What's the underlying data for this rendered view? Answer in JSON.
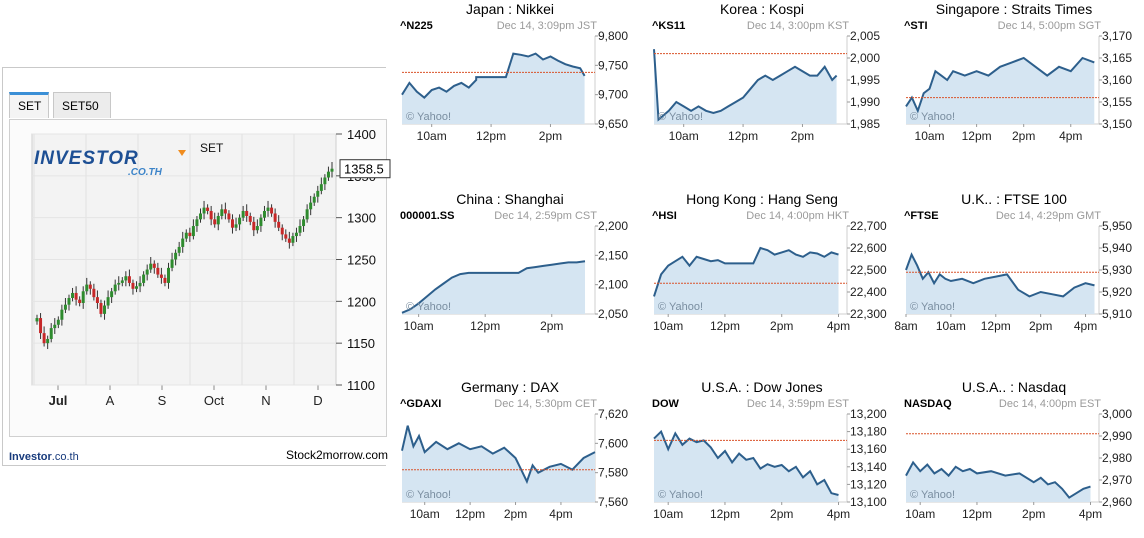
{
  "set_panel": {
    "tabs": [
      {
        "label": "SET"
      },
      {
        "label": "SET50"
      }
    ],
    "logo_text": "INVESTOR",
    "logo_sub": ".CO.TH",
    "index_label": "SET",
    "current_value_label": "1358.5",
    "footer_brand": "Investor",
    "footer_domain": ".co.th",
    "footer_right": "Stock2morrow.com"
  },
  "chart_data": [
    {
      "id": "set",
      "type": "candlestick",
      "title": "SET",
      "ylim": [
        1100,
        1400
      ],
      "yticks": [
        1100,
        1150,
        1200,
        1250,
        1300,
        1350,
        1400
      ],
      "xtick_labels": [
        "Jul",
        "A",
        "S",
        "Oct",
        "N",
        "D"
      ],
      "current_value": 1358.5,
      "up_color": "#2e8b2e",
      "down_color": "#c62828",
      "closes": [
        1180,
        1162,
        1150,
        1155,
        1168,
        1172,
        1178,
        1190,
        1196,
        1204,
        1210,
        1202,
        1198,
        1212,
        1220,
        1215,
        1205,
        1198,
        1185,
        1195,
        1205,
        1212,
        1220,
        1222,
        1225,
        1230,
        1222,
        1215,
        1218,
        1222,
        1232,
        1238,
        1245,
        1240,
        1232,
        1228,
        1222,
        1240,
        1250,
        1258,
        1265,
        1275,
        1282,
        1278,
        1290,
        1298,
        1305,
        1312,
        1308,
        1298,
        1292,
        1302,
        1310,
        1305,
        1298,
        1288,
        1292,
        1300,
        1308,
        1302,
        1295,
        1285,
        1290,
        1300,
        1308,
        1312,
        1305,
        1295,
        1288,
        1280,
        1275,
        1270,
        1278,
        1282,
        1290,
        1298,
        1310,
        1318,
        1325,
        1332,
        1340,
        1348,
        1355,
        1358.5
      ]
    },
    {
      "id": "nikkei",
      "type": "area",
      "title": "Japan : Nikkei",
      "symbol": "^N225",
      "timestamp": "Dec 14, 3:09pm JST",
      "ylim": [
        9650,
        9800
      ],
      "yticks": [
        9650,
        9700,
        9750,
        9800
      ],
      "ytick_labels": [
        "9,650",
        "9,700",
        "9,750",
        "9,800"
      ],
      "xlim": [
        9,
        15.5
      ],
      "xticks": [
        10,
        12,
        14
      ],
      "xtick_labels": [
        "10am",
        "12pm",
        "2pm"
      ],
      "reference": 9738,
      "x": [
        9,
        9.25,
        9.5,
        9.75,
        10,
        10.25,
        10.5,
        10.75,
        11,
        11.25,
        11.5,
        11.5,
        12.5,
        12.75,
        13,
        13.25,
        13.5,
        13.75,
        14,
        14.25,
        14.5,
        14.75,
        15,
        15.15
      ],
      "y": [
        9700,
        9720,
        9705,
        9695,
        9708,
        9712,
        9705,
        9715,
        9720,
        9712,
        9725,
        9730,
        9730,
        9770,
        9768,
        9765,
        9770,
        9760,
        9765,
        9758,
        9752,
        9748,
        9745,
        9732
      ]
    },
    {
      "id": "kospi",
      "type": "area",
      "title": "Korea : Kospi",
      "symbol": "^KS11",
      "timestamp": "Dec 14, 3:00pm KST",
      "ylim": [
        1985,
        2005
      ],
      "yticks": [
        1985,
        1990,
        1995,
        2000,
        2005
      ],
      "ytick_labels": [
        "1,985",
        "1,990",
        "1,995",
        "2,000",
        "2,005"
      ],
      "xlim": [
        9,
        15.5
      ],
      "xticks": [
        10,
        12,
        14
      ],
      "xtick_labels": [
        "10am",
        "12pm",
        "2pm"
      ],
      "reference": 2001,
      "x": [
        9,
        9.15,
        9.5,
        9.75,
        10,
        10.25,
        10.5,
        10.75,
        11,
        11.25,
        11.5,
        11.75,
        12,
        12.25,
        12.5,
        12.75,
        13,
        13.25,
        13.5,
        13.75,
        14,
        14.25,
        14.5,
        14.75,
        15,
        15.15
      ],
      "y": [
        2002,
        1986,
        1988,
        1990,
        1989,
        1988,
        1989,
        1988,
        1987.5,
        1988,
        1989,
        1990,
        1991,
        1993,
        1995,
        1996,
        1995,
        1996,
        1997,
        1998,
        1997,
        1996,
        1996,
        1998,
        1995,
        1996
      ]
    },
    {
      "id": "sti",
      "type": "area",
      "title": "Singapore : Straits Times",
      "symbol": "^STI",
      "timestamp": "Dec 14, 5:00pm SGT",
      "ylim": [
        3150,
        3170
      ],
      "yticks": [
        3150,
        3155,
        3160,
        3165,
        3170
      ],
      "ytick_labels": [
        "3,150",
        "3,155",
        "3,160",
        "3,165",
        "3,170"
      ],
      "xlim": [
        9,
        17.2
      ],
      "xticks": [
        10,
        12,
        14,
        16
      ],
      "xtick_labels": [
        "10am",
        "12pm",
        "2pm",
        "4pm"
      ],
      "reference": 3156,
      "x": [
        9,
        9.25,
        9.5,
        9.75,
        10,
        10.25,
        10.5,
        10.75,
        11,
        11.5,
        12,
        12.5,
        13,
        13.5,
        14,
        14.5,
        15,
        15.5,
        16,
        16.5,
        17
      ],
      "y": [
        3154,
        3156,
        3153,
        3157,
        3158,
        3162,
        3161,
        3160,
        3162,
        3161,
        3162,
        3161,
        3163,
        3164,
        3165,
        3163,
        3161,
        3163,
        3162,
        3165,
        3164
      ]
    },
    {
      "id": "shanghai",
      "type": "area",
      "title": "China : Shanghai",
      "symbol": "000001.SS",
      "timestamp": "Dec 14, 2:59pm CST",
      "ylim": [
        2050,
        2200
      ],
      "yticks": [
        2050,
        2100,
        2150,
        2200
      ],
      "ytick_labels": [
        "2,050",
        "2,100",
        "2,150",
        "2,200"
      ],
      "xlim": [
        9.5,
        15.3
      ],
      "xticks": [
        10,
        12,
        14
      ],
      "xtick_labels": [
        "10am",
        "12pm",
        "2pm"
      ],
      "reference": null,
      "x": [
        9.5,
        9.75,
        10,
        10.25,
        10.5,
        10.75,
        11,
        11.25,
        11.5,
        13,
        13.25,
        13.5,
        13.75,
        14,
        14.25,
        14.5,
        14.75,
        15
      ],
      "y": [
        2052,
        2058,
        2068,
        2080,
        2092,
        2102,
        2112,
        2118,
        2120,
        2120,
        2128,
        2130,
        2132,
        2134,
        2136,
        2138,
        2138,
        2140
      ]
    },
    {
      "id": "hangseng",
      "type": "area",
      "title": "Hong Kong : Hang Seng",
      "symbol": "^HSI",
      "timestamp": "Dec 14, 4:00pm HKT",
      "ylim": [
        22300,
        22700
      ],
      "yticks": [
        22300,
        22400,
        22500,
        22600,
        22700
      ],
      "ytick_labels": [
        "22,300",
        "22,400",
        "22,500",
        "22,600",
        "22,700"
      ],
      "xlim": [
        9.5,
        16.3
      ],
      "xticks": [
        10,
        12,
        14,
        16
      ],
      "xtick_labels": [
        "10am",
        "12pm",
        "2pm",
        "4pm"
      ],
      "reference": 22440,
      "x": [
        9.5,
        9.75,
        10,
        10.25,
        10.5,
        10.75,
        11,
        11.25,
        11.5,
        11.75,
        12,
        13,
        13.25,
        13.5,
        13.75,
        14,
        14.25,
        14.5,
        14.75,
        15,
        15.25,
        15.5,
        15.75,
        16
      ],
      "y": [
        22380,
        22480,
        22520,
        22540,
        22560,
        22520,
        22560,
        22550,
        22540,
        22545,
        22530,
        22530,
        22600,
        22590,
        22570,
        22580,
        22590,
        22570,
        22560,
        22580,
        22575,
        22560,
        22580,
        22570
      ]
    },
    {
      "id": "ftse",
      "type": "area",
      "title": "U.K.. : FTSE 100",
      "symbol": "^FTSE",
      "timestamp": "Dec 14, 4:29pm GMT",
      "ylim": [
        5910,
        5950
      ],
      "yticks": [
        5910,
        5920,
        5930,
        5940,
        5950
      ],
      "ytick_labels": [
        "5,910",
        "5,920",
        "5,930",
        "5,940",
        "5,950"
      ],
      "xlim": [
        8,
        16.6
      ],
      "xticks": [
        8,
        10,
        12,
        14,
        16
      ],
      "xtick_labels": [
        "8am",
        "10am",
        "12pm",
        "2pm",
        "4pm"
      ],
      "reference": 5929,
      "x": [
        8,
        8.25,
        8.5,
        8.75,
        9,
        9.25,
        9.5,
        9.75,
        10,
        10.5,
        11,
        11.5,
        12,
        12.5,
        13,
        13.5,
        14,
        14.5,
        15,
        15.5,
        16,
        16.4
      ],
      "y": [
        5930,
        5937,
        5932,
        5926,
        5929,
        5924,
        5928,
        5926,
        5925,
        5926,
        5924,
        5926,
        5927,
        5928,
        5921,
        5918,
        5920,
        5919,
        5918,
        5922,
        5924,
        5923
      ]
    },
    {
      "id": "dax",
      "type": "area",
      "title": "Germany : DAX",
      "symbol": "^GDAXI",
      "timestamp": "Dec 14, 5:30pm CET",
      "ylim": [
        7560,
        7620
      ],
      "yticks": [
        7560,
        7580,
        7600,
        7620
      ],
      "ytick_labels": [
        "7,560",
        "7,580",
        "7,600",
        "7,620"
      ],
      "xlim": [
        9,
        17.5
      ],
      "xticks": [
        10,
        12,
        14,
        16
      ],
      "xtick_labels": [
        "10am",
        "12pm",
        "2pm",
        "4pm"
      ],
      "reference": 7582,
      "x": [
        9,
        9.25,
        9.5,
        9.75,
        10,
        10.5,
        11,
        11.5,
        12,
        12.5,
        13,
        13.5,
        14,
        14.25,
        14.5,
        14.75,
        15,
        15.5,
        16,
        16.5,
        17,
        17.5
      ],
      "y": [
        7595,
        7612,
        7598,
        7605,
        7594,
        7601,
        7596,
        7600,
        7596,
        7598,
        7593,
        7597,
        7590,
        7582,
        7574,
        7585,
        7580,
        7584,
        7586,
        7582,
        7590,
        7594
      ]
    },
    {
      "id": "dow",
      "type": "area",
      "title": "U.S.A. : Dow Jones",
      "symbol": "DOW",
      "timestamp": "Dec 14, 3:59pm EST",
      "ylim": [
        13100,
        13200
      ],
      "yticks": [
        13100,
        13120,
        13140,
        13160,
        13180,
        13200
      ],
      "ytick_labels": [
        "13,100",
        "13,120",
        "13,140",
        "13,160",
        "13,180",
        "13,200"
      ],
      "xlim": [
        9.5,
        16.3
      ],
      "xticks": [
        10,
        12,
        14,
        16
      ],
      "xtick_labels": [
        "10am",
        "12pm",
        "2pm",
        "4pm"
      ],
      "reference": 13170,
      "x": [
        9.5,
        9.75,
        10,
        10.25,
        10.5,
        10.75,
        11,
        11.25,
        11.5,
        11.75,
        12,
        12.25,
        12.5,
        12.75,
        13,
        13.25,
        13.5,
        13.75,
        14,
        14.25,
        14.5,
        14.75,
        15,
        15.25,
        15.5,
        15.75,
        16
      ],
      "y": [
        13172,
        13180,
        13160,
        13178,
        13165,
        13172,
        13168,
        13170,
        13162,
        13150,
        13158,
        13145,
        13155,
        13148,
        13150,
        13138,
        13143,
        13140,
        13142,
        13135,
        13140,
        13128,
        13135,
        13120,
        13125,
        13110,
        13108
      ]
    },
    {
      "id": "nasdaq",
      "type": "area",
      "title": "U.S.A.. : Nasdaq",
      "symbol": "NASDAQ",
      "timestamp": "Dec 14, 4:00pm EST",
      "ylim": [
        2960,
        3000
      ],
      "yticks": [
        2960,
        2970,
        2980,
        2990,
        3000
      ],
      "ytick_labels": [
        "2,960",
        "2,970",
        "2,980",
        "2,990",
        "3,000"
      ],
      "xlim": [
        9.5,
        16.3
      ],
      "xticks": [
        10,
        12,
        14,
        16
      ],
      "xtick_labels": [
        "10am",
        "12pm",
        "2pm",
        "4pm"
      ],
      "reference": 2991,
      "x": [
        9.5,
        9.75,
        10,
        10.25,
        10.5,
        10.75,
        11,
        11.25,
        11.5,
        11.75,
        12,
        12.5,
        13,
        13.5,
        14,
        14.25,
        14.5,
        14.75,
        15,
        15.25,
        15.5,
        15.75,
        16
      ],
      "y": [
        2972,
        2978,
        2974,
        2977,
        2973,
        2975,
        2972,
        2976,
        2974,
        2975,
        2973,
        2974,
        2972,
        2973,
        2969,
        2971,
        2968,
        2969,
        2966,
        2962,
        2964,
        2966,
        2967
      ]
    }
  ],
  "mini_chart_style": {
    "line_color": "#2d5f8c",
    "fill_color": "#d5e5f2",
    "reference_color": "#d9532a",
    "watermark": "© Yahoo!"
  }
}
